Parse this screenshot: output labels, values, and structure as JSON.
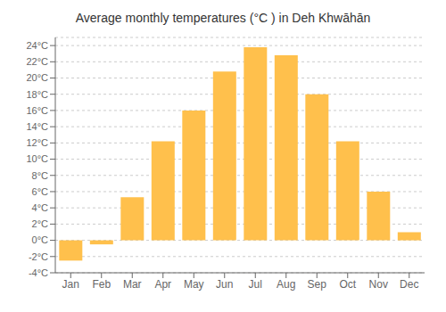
{
  "chart_data": {
    "type": "bar",
    "title": "Average monthly temperatures (°C ) in Deh Khwāhān",
    "categories": [
      "Jan",
      "Feb",
      "Mar",
      "Apr",
      "May",
      "Jun",
      "Jul",
      "Aug",
      "Sep",
      "Oct",
      "Nov",
      "Dec"
    ],
    "values": [
      -2.5,
      -0.5,
      5.3,
      12.2,
      16.0,
      20.8,
      23.8,
      22.8,
      18.0,
      12.2,
      6.0,
      1.0
    ],
    "color": "#FFC04C",
    "ylim": [
      -4,
      25
    ],
    "yticks": [
      {
        "value": -4,
        "label": "-4°C"
      },
      {
        "value": -2,
        "label": "-2°C"
      },
      {
        "value": 0,
        "label": "0°C"
      },
      {
        "value": 2,
        "label": "2°C"
      },
      {
        "value": 4,
        "label": "4°C"
      },
      {
        "value": 6,
        "label": "6°C"
      },
      {
        "value": 8,
        "label": "8°C"
      },
      {
        "value": 10,
        "label": "10°C"
      },
      {
        "value": 12,
        "label": "12°C"
      },
      {
        "value": 14,
        "label": "14°C"
      },
      {
        "value": 16,
        "label": "16°C"
      },
      {
        "value": 18,
        "label": "18°C"
      },
      {
        "value": 20,
        "label": "20°C"
      },
      {
        "value": 22,
        "label": "22°C"
      },
      {
        "value": 24,
        "label": "24°C"
      }
    ],
    "grid": true
  }
}
